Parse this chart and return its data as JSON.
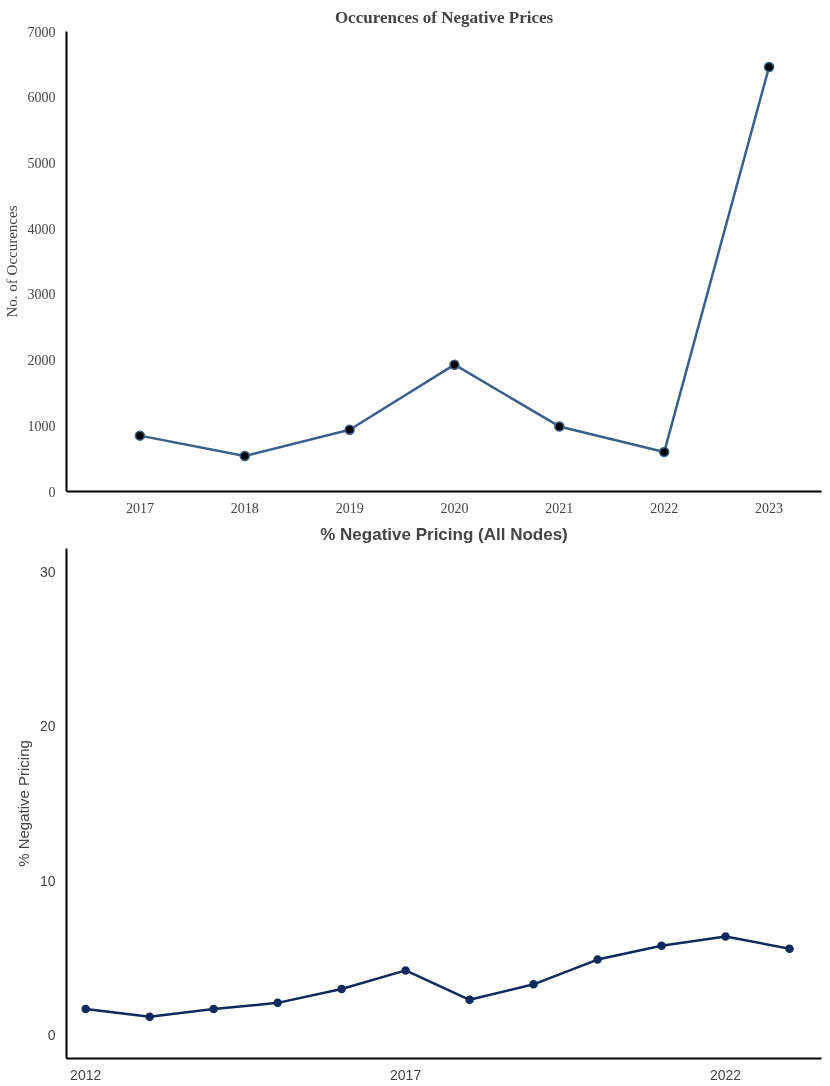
{
  "chart_data": [
    {
      "type": "line",
      "title": "Occurences of Negative Prices",
      "ylabel": "No. of Occurences",
      "categories": [
        "2017",
        "2018",
        "2019",
        "2020",
        "2021",
        "2022",
        "2023"
      ],
      "series": [
        {
          "color": "#3a5f8a",
          "values": [
            850,
            540,
            940,
            1930,
            990,
            600,
            6460
          ]
        }
      ],
      "ylim": [
        0,
        7000
      ],
      "yticks": [
        0,
        1000,
        2000,
        3000,
        4000,
        5000,
        6000,
        7000
      ],
      "grid": false,
      "marker": "circle",
      "line_style": "solid"
    },
    {
      "type": "line",
      "title": "% Negative Pricing (All Nodes)",
      "ylabel": "% Negative Pricing",
      "x": [
        2012,
        2013,
        2014,
        2015,
        2016,
        2017,
        2018,
        2019,
        2020,
        2021,
        2022,
        2023
      ],
      "series": [
        {
          "color": "#0d2a5c",
          "values": [
            1.7,
            1.2,
            1.7,
            2.1,
            3.0,
            4.2,
            2.3,
            3.3,
            4.9,
            5.8,
            6.4,
            5.6
          ]
        }
      ],
      "xlim": [
        2011.7,
        2023.5
      ],
      "xticks": [
        2012,
        2017,
        2022
      ],
      "ylim": [
        -1.5,
        31.5
      ],
      "yticks": [
        0,
        10,
        20,
        30
      ],
      "grid": false,
      "marker": "circle",
      "line_style": "solid"
    }
  ]
}
